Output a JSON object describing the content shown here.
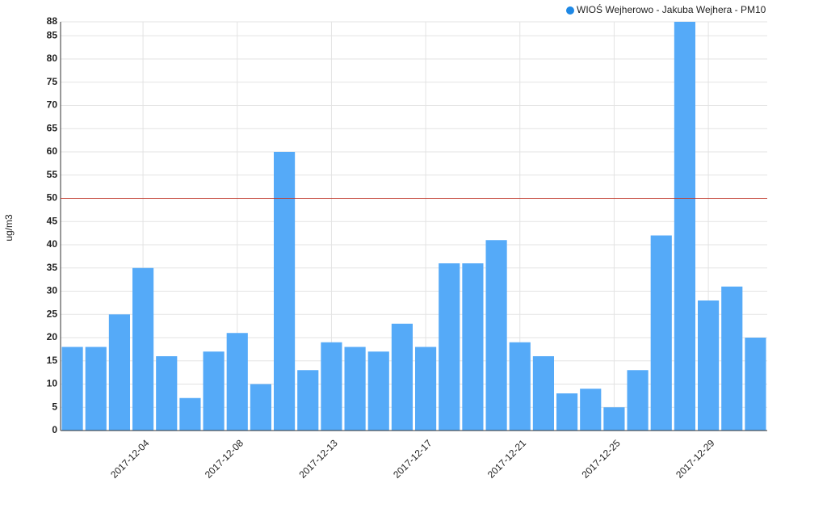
{
  "chart_data": {
    "type": "bar",
    "legend": "WIOŚ Wejherowo - Jakuba Wejhera - PM10",
    "y_label": "ug/m3",
    "color": "#55aaf8",
    "legend_color": "#1e88e5",
    "categories": [
      null,
      null,
      null,
      "2017-12-04",
      null,
      null,
      null,
      "2017-12-08",
      null,
      null,
      null,
      "2017-12-13",
      null,
      null,
      null,
      "2017-12-17",
      null,
      null,
      null,
      "2017-12-21",
      null,
      null,
      null,
      "2017-12-25",
      null,
      null,
      null,
      "2017-12-29",
      null,
      null
    ],
    "values": [
      18,
      18,
      25,
      35,
      16,
      7,
      17,
      21,
      10,
      60,
      13,
      19,
      18,
      17,
      23,
      18,
      36,
      36,
      41,
      19,
      16,
      8,
      9,
      5,
      13,
      42,
      88,
      28,
      31,
      20
    ],
    "ylim": [
      0,
      88
    ],
    "yticks": [
      0,
      5,
      10,
      15,
      20,
      25,
      30,
      35,
      40,
      45,
      50,
      55,
      60,
      65,
      70,
      75,
      80,
      85,
      88
    ],
    "threshold": 50,
    "threshold_color": "#c0392b",
    "grid": true
  }
}
